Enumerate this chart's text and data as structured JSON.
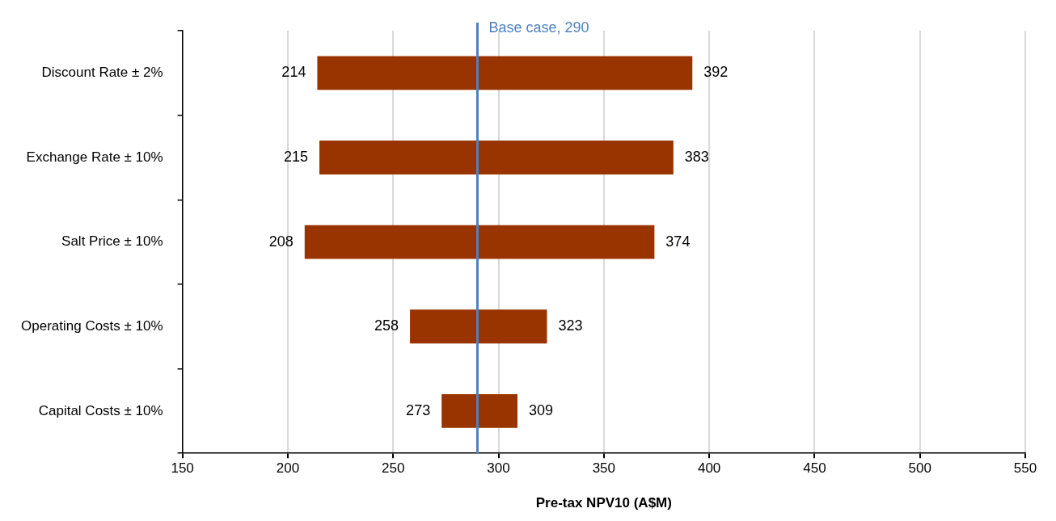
{
  "chart_data": {
    "type": "bar",
    "orientation": "horizontal",
    "xlabel": "Pre-tax NPV10 (A$M)",
    "categories": [
      "Discount Rate ± 2%",
      "Exchange Rate ± 10%",
      "Salt Price ± 10%",
      "Operating Costs ± 10%",
      "Capital Costs ± 10%"
    ],
    "base": [
      214,
      215,
      208,
      258,
      273
    ],
    "values": [
      178,
      168,
      166,
      65,
      36
    ],
    "color": "#993300",
    "xlim": [
      150,
      550
    ],
    "xticks": [
      150,
      200,
      250,
      300,
      350,
      400,
      450,
      500,
      550
    ],
    "grid": "x",
    "legend": false,
    "ref_lines": [
      {
        "axis": "x",
        "value": 290,
        "label": "Base case, 290",
        "color": "#4f81bd"
      }
    ],
    "annotations": [
      {
        "text": "214",
        "x": 214,
        "y": "Discount Rate ± 2%"
      },
      {
        "text": "392",
        "x": 392,
        "y": "Discount Rate ± 2%"
      },
      {
        "text": "215",
        "x": 215,
        "y": "Exchange Rate ± 10%"
      },
      {
        "text": "383",
        "x": 383,
        "y": "Exchange Rate ± 10%"
      },
      {
        "text": "208",
        "x": 208,
        "y": "Salt Price ± 10%"
      },
      {
        "text": "374",
        "x": 374,
        "y": "Salt Price ± 10%"
      },
      {
        "text": "258",
        "x": 258,
        "y": "Operating Costs ± 10%"
      },
      {
        "text": "323",
        "x": 323,
        "y": "Operating Costs ± 10%"
      },
      {
        "text": "273",
        "x": 273,
        "y": "Capital Costs ± 10%"
      },
      {
        "text": "309",
        "x": 309,
        "y": "Capital Costs ± 10%"
      }
    ]
  }
}
